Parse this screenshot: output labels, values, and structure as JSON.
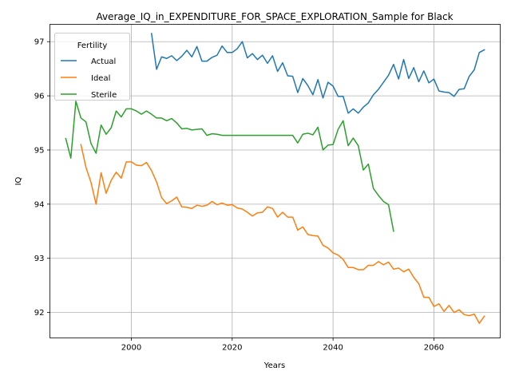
{
  "chart_data": {
    "type": "line",
    "title": "Average_IQ_in_EXPENDITURE_FOR_SPACE_EXPLORATION_Sample for Black",
    "xlabel": "Years",
    "ylabel": "IQ",
    "xlim": [
      1983.85,
      2073.15
    ],
    "ylim": [
      91.53,
      97.32
    ],
    "x_ticks": [
      2000,
      2020,
      2040,
      2060
    ],
    "y_ticks": [
      92,
      93,
      94,
      95,
      96,
      97
    ],
    "x_tick_labels": [
      "2000",
      "2020",
      "2040",
      "2060"
    ],
    "y_tick_labels": [
      "92",
      "93",
      "94",
      "95",
      "96",
      "97"
    ],
    "grid": true,
    "legend": {
      "title": "Fertility",
      "placement": "top-left"
    },
    "series": [
      {
        "name": "Actual",
        "color": "#1f77b4",
        "x": [
          2004,
          2005,
          2006,
          2007,
          2008,
          2009,
          2010,
          2011,
          2012,
          2013,
          2014,
          2015,
          2016,
          2017,
          2018,
          2019,
          2020,
          2021,
          2022,
          2023,
          2024,
          2025,
          2026,
          2027,
          2028,
          2029,
          2030,
          2031,
          2032,
          2033,
          2034,
          2035,
          2036,
          2037,
          2038,
          2039,
          2040,
          2041,
          2042,
          2043,
          2044,
          2045,
          2046,
          2047,
          2048,
          2049,
          2050,
          2051,
          2052,
          2053,
          2054,
          2055,
          2056,
          2057,
          2058,
          2059,
          2060,
          2061,
          2062,
          2063,
          2064,
          2065,
          2066,
          2067,
          2068,
          2069,
          2070
        ],
        "y": [
          97.15,
          96.49,
          96.72,
          96.69,
          96.74,
          96.65,
          96.73,
          96.84,
          96.72,
          96.91,
          96.64,
          96.64,
          96.71,
          96.75,
          96.92,
          96.8,
          96.8,
          96.87,
          97.0,
          96.7,
          96.78,
          96.67,
          96.75,
          96.6,
          96.74,
          96.45,
          96.61,
          96.37,
          96.36,
          96.06,
          96.32,
          96.19,
          96.02,
          96.3,
          95.96,
          96.25,
          96.18,
          95.99,
          95.99,
          95.68,
          95.76,
          95.68,
          95.79,
          95.87,
          96.02,
          96.12,
          96.25,
          96.38,
          96.58,
          96.31,
          96.67,
          96.32,
          96.52,
          96.26,
          96.46,
          96.24,
          96.31,
          96.09,
          96.07,
          96.06,
          95.99,
          96.12,
          96.13,
          96.36,
          96.48,
          96.8,
          96.85
        ]
      },
      {
        "name": "Ideal",
        "color": "#ff7f0e",
        "x": [
          1990,
          1991,
          1992,
          1993,
          1994,
          1995,
          1996,
          1997,
          1998,
          1999,
          2000,
          2001,
          2002,
          2003,
          2004,
          2005,
          2006,
          2007,
          2008,
          2009,
          2010,
          2011,
          2012,
          2013,
          2014,
          2015,
          2016,
          2017,
          2018,
          2019,
          2020,
          2021,
          2022,
          2023,
          2024,
          2025,
          2026,
          2027,
          2028,
          2029,
          2030,
          2031,
          2032,
          2033,
          2034,
          2035,
          2036,
          2037,
          2038,
          2039,
          2040,
          2041,
          2042,
          2043,
          2044,
          2045,
          2046,
          2047,
          2048,
          2049,
          2050,
          2051,
          2052,
          2053,
          2054,
          2055,
          2056,
          2057,
          2058,
          2059,
          2060,
          2061,
          2062,
          2063,
          2064,
          2065,
          2066,
          2067,
          2068,
          2069,
          2070
        ],
        "y": [
          95.1,
          94.68,
          94.4,
          94.0,
          94.58,
          94.2,
          94.44,
          94.59,
          94.48,
          94.78,
          94.78,
          94.72,
          94.71,
          94.77,
          94.62,
          94.41,
          94.12,
          94.01,
          94.06,
          94.13,
          93.95,
          93.94,
          93.92,
          93.98,
          93.96,
          93.98,
          94.05,
          93.99,
          94.02,
          93.98,
          93.99,
          93.93,
          93.91,
          93.85,
          93.78,
          93.84,
          93.85,
          93.95,
          93.92,
          93.76,
          93.85,
          93.76,
          93.76,
          93.52,
          93.58,
          93.44,
          93.42,
          93.41,
          93.24,
          93.19,
          93.1,
          93.06,
          92.98,
          92.83,
          92.83,
          92.79,
          92.79,
          92.87,
          92.87,
          92.94,
          92.88,
          92.93,
          92.8,
          92.82,
          92.75,
          92.8,
          92.65,
          92.53,
          92.28,
          92.28,
          92.11,
          92.16,
          92.02,
          92.13,
          92.0,
          92.05,
          91.96,
          91.94,
          91.97,
          91.8,
          91.93
        ]
      },
      {
        "name": "Sterile",
        "color": "#2ca02c",
        "x": [
          1987,
          1988,
          1989,
          1990,
          1991,
          1992,
          1993,
          1994,
          1995,
          1996,
          1997,
          1998,
          1999,
          2000,
          2001,
          2002,
          2003,
          2004,
          2005,
          2006,
          2007,
          2008,
          2009,
          2010,
          2011,
          2012,
          2013,
          2014,
          2015,
          2016,
          2017,
          2018,
          2019,
          2020,
          2021,
          2022,
          2023,
          2024,
          2025,
          2026,
          2027,
          2028,
          2029,
          2030,
          2031,
          2032,
          2033,
          2034,
          2035,
          2036,
          2037,
          2038,
          2039,
          2040,
          2041,
          2042,
          2043,
          2044,
          2045,
          2046,
          2047,
          2048,
          2049,
          2050,
          2051,
          2052
        ],
        "y": [
          95.21,
          94.85,
          95.9,
          95.59,
          95.52,
          95.12,
          94.94,
          95.46,
          95.29,
          95.41,
          95.72,
          95.61,
          95.76,
          95.76,
          95.72,
          95.66,
          95.72,
          95.66,
          95.59,
          95.59,
          95.54,
          95.58,
          95.5,
          95.39,
          95.4,
          95.37,
          95.38,
          95.39,
          95.27,
          95.3,
          95.29,
          95.27,
          95.27,
          95.27,
          95.27,
          95.27,
          95.27,
          95.27,
          95.27,
          95.27,
          95.27,
          95.27,
          95.27,
          95.27,
          95.27,
          95.27,
          95.13,
          95.29,
          95.31,
          95.28,
          95.42,
          95.0,
          95.09,
          95.1,
          95.38,
          95.54,
          95.08,
          95.22,
          95.08,
          94.63,
          94.74,
          94.29,
          94.16,
          94.05,
          93.99,
          93.5
        ]
      }
    ]
  }
}
